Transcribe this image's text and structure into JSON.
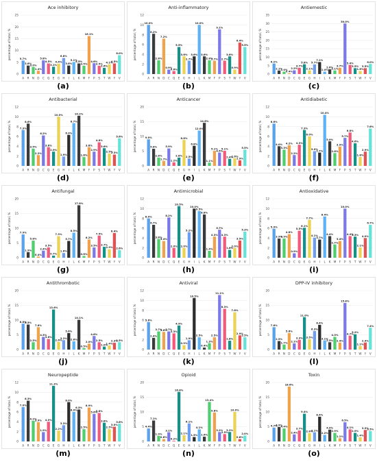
{
  "figure": {
    "residues": [
      "A",
      "R",
      "N",
      "D",
      "C",
      "Q",
      "E",
      "G",
      "H",
      "I",
      "L",
      "K",
      "M",
      "F",
      "P",
      "S",
      "T",
      "W",
      "Y",
      "V"
    ],
    "ylabel": "percentage of total, %",
    "palette": [
      "#5aa2ec",
      "#3b3b3b",
      "#4fce6d",
      "#f0a34d",
      "#7a78e6",
      "#f2597a",
      "#169089",
      "#ecd252",
      "#6f9ef0",
      "#2c2c2c",
      "#5fb3f4",
      "#3a3a3a",
      "#4fcf6f",
      "#f1a04d",
      "#7c7ae8",
      "#f25a7c",
      "#149087",
      "#ecd256",
      "#e55050",
      "#66e3d9"
    ]
  },
  "chart_data": [
    {
      "type": "bar",
      "panel": "(a)",
      "title": "Ace inhibitory",
      "ylim": [
        0,
        25
      ],
      "yticks": [
        0,
        5,
        10,
        15,
        20,
        25
      ],
      "values": [
        5.7,
        3.6,
        3.0,
        1.4,
        5.8,
        4.5,
        3.1,
        4.4,
        6.8,
        3.6,
        5.1,
        4.5,
        3.5,
        16.1,
        4.6,
        3.5,
        2.6,
        4.1,
        4.5,
        8.0
      ]
    },
    {
      "type": "bar",
      "panel": "(b)",
      "title": "Anti-inflammatory",
      "ylim": [
        0,
        12
      ],
      "yticks": [
        0,
        2,
        4,
        6,
        8,
        10,
        12
      ],
      "values": [
        10.0,
        8.2,
        2.8,
        7.2,
        0.9,
        0.6,
        5.5,
        3.6,
        2.7,
        3.6,
        10.0,
        3.6,
        2.8,
        2.7,
        9.1,
        2.7,
        3.6,
        0.9,
        6.4,
        5.5
      ]
    },
    {
      "type": "bar",
      "panel": "(c)",
      "title": "Antiemestic",
      "ylim": [
        0,
        35
      ],
      "yticks": [
        0,
        5,
        10,
        15,
        20,
        25,
        30,
        35
      ],
      "values": [
        6.2,
        2.1,
        1.4,
        0.4,
        2.2,
        3.7,
        5.8,
        2.1,
        5.7,
        7.1,
        1.4,
        2.8,
        2.1,
        3.7,
        30.0,
        5.4,
        3.5,
        1.8,
        3.5,
        6.0
      ]
    },
    {
      "type": "bar",
      "panel": "(d)",
      "title": "Antibacterial",
      "ylim": [
        0,
        12
      ],
      "yticks": [
        0,
        2,
        4,
        6,
        8,
        10,
        12
      ],
      "values": [
        7.3,
        8.6,
        3.5,
        2.2,
        6.2,
        3.8,
        2.9,
        10.0,
        1.9,
        6.3,
        8.7,
        10.2,
        1.8,
        3.8,
        2.9,
        4.8,
        3.6,
        2.5,
        2.3,
        5.6
      ]
    },
    {
      "type": "bar",
      "panel": "(e)",
      "title": "Anticancer",
      "ylim": [
        0,
        20
      ],
      "yticks": [
        0,
        5,
        10,
        15,
        20
      ],
      "values": [
        9.0,
        5.8,
        2.8,
        1.7,
        5.9,
        1.2,
        2.8,
        8.8,
        2.5,
        6.8,
        12.0,
        14.6,
        1.1,
        5.1,
        4.5,
        5.1,
        2.4,
        2.6,
        1.9,
        5.5
      ]
    },
    {
      "type": "bar",
      "panel": "(f)",
      "title": "Antidiabetic",
      "ylim": [
        0,
        12
      ],
      "yticks": [
        0,
        2,
        4,
        6,
        8,
        10,
        12
      ],
      "values": [
        8.6,
        4.0,
        3.3,
        4.2,
        2.2,
        4.3,
        7.3,
        6.0,
        3.0,
        2.7,
        10.4,
        5.0,
        2.6,
        3.9,
        5.7,
        6.8,
        4.6,
        1.8,
        2.9,
        7.6
      ]
    },
    {
      "type": "bar",
      "panel": "(g)",
      "title": "Antifungal",
      "ylim": [
        0,
        20
      ],
      "yticks": [
        0,
        5,
        10,
        15,
        20
      ],
      "values": [
        7.9,
        1.9,
        5.8,
        0.4,
        2.4,
        3.5,
        0.7,
        7.3,
        1.6,
        5.7,
        8.5,
        17.8,
        0.6,
        6.2,
        3.5,
        7.5,
        3.7,
        2.9,
        8.4,
        2.6
      ]
    },
    {
      "type": "bar",
      "panel": "(h)",
      "title": "Antimicrobial",
      "ylim": [
        0,
        12
      ],
      "yticks": [
        0,
        2,
        4,
        6,
        8,
        10,
        12
      ],
      "values": [
        8.0,
        6.7,
        3.8,
        3.4,
        8.2,
        2.0,
        10.5,
        2.0,
        5.2,
        10.0,
        9.5,
        8.8,
        1.4,
        4.3,
        5.7,
        4.3,
        1.6,
        2.0,
        3.5,
        5.3
      ]
    },
    {
      "type": "bar",
      "panel": "(i)",
      "title": "Antioxidative",
      "ylim": [
        0,
        12
      ],
      "yticks": [
        0,
        2,
        4,
        6,
        8,
        10,
        12
      ],
      "values": [
        5.9,
        3.9,
        3.9,
        4.8,
        0.9,
        5.5,
        6.1,
        7.7,
        4.1,
        3.7,
        8.4,
        4.4,
        2.7,
        3.4,
        10.0,
        4.4,
        4.3,
        2.1,
        4.0,
        6.7
      ]
    },
    {
      "type": "bar",
      "panel": "(j)",
      "title": "Antithrombotic",
      "ylim": [
        0,
        20
      ],
      "yticks": [
        0,
        5,
        10,
        15,
        20
      ],
      "values": [
        8.8,
        8.5,
        2.5,
        7.6,
        4.3,
        3.6,
        13.6,
        2.6,
        3.2,
        5.6,
        2.8,
        10.1,
        0.5,
        2.0,
        4.6,
        2.5,
        1.0,
        1.4,
        2.3,
        2.5
      ]
    },
    {
      "type": "bar",
      "panel": "(k)",
      "title": "Antiviral",
      "ylim": [
        0,
        12
      ],
      "yticks": [
        0,
        2,
        4,
        6,
        8,
        10,
        12
      ],
      "values": [
        5.6,
        2.4,
        3.7,
        3.6,
        3.7,
        3.3,
        4.9,
        0.9,
        1.9,
        10.5,
        2.5,
        0.4,
        1.3,
        2.5,
        11.1,
        8.3,
        1.8,
        7.6,
        2.9,
        2.5
      ]
    },
    {
      "type": "bar",
      "panel": "(l)",
      "title": "DPP-IV inhibitory",
      "ylim": [
        0,
        20
      ],
      "yticks": [
        0,
        5,
        10,
        15,
        20
      ],
      "values": [
        7.6,
        2.9,
        1.7,
        5.6,
        2.1,
        3.3,
        11.0,
        3.5,
        6.3,
        8.4,
        3.1,
        2.5,
        4.3,
        2.4,
        15.8,
        4.7,
        5.2,
        1.2,
        2.4,
        7.4
      ]
    },
    {
      "type": "bar",
      "panel": "(m)",
      "title": "Neuropeptide",
      "ylim": [
        0,
        12
      ],
      "yticks": [
        0,
        2,
        4,
        6,
        8,
        10,
        12
      ],
      "values": [
        7.0,
        8.3,
        4.2,
        3.9,
        1.9,
        4.0,
        11.3,
        2.2,
        3.3,
        8.0,
        6.0,
        6.5,
        2.5,
        6.9,
        5.6,
        5.8,
        3.8,
        2.5,
        3.0,
        3.6
      ]
    },
    {
      "type": "bar",
      "panel": "(n)",
      "title": "Opioid",
      "ylim": [
        0,
        20
      ],
      "yticks": [
        0,
        5,
        10,
        15,
        20
      ],
      "values": [
        4.4,
        7.1,
        1.9,
        0.8,
        3.1,
        0.2,
        16.8,
        2.1,
        6.1,
        1.5,
        4.1,
        1.6,
        13.4,
        9.8,
        3.2,
        2.5,
        3.2,
        10.0,
        0.8,
        2.0
      ]
    },
    {
      "type": "bar",
      "panel": "(o)",
      "title": "Toxin",
      "ylim": [
        0,
        20
      ],
      "yticks": [
        0,
        5,
        10,
        15,
        20
      ],
      "values": [
        4.7,
        4.9,
        4.4,
        18.6,
        2.4,
        3.7,
        9.4,
        2.8,
        3.1,
        8.4,
        2.2,
        4.0,
        2.9,
        1.1,
        6.5,
        4.1,
        2.9,
        1.4,
        3.9,
        3.5
      ]
    }
  ]
}
